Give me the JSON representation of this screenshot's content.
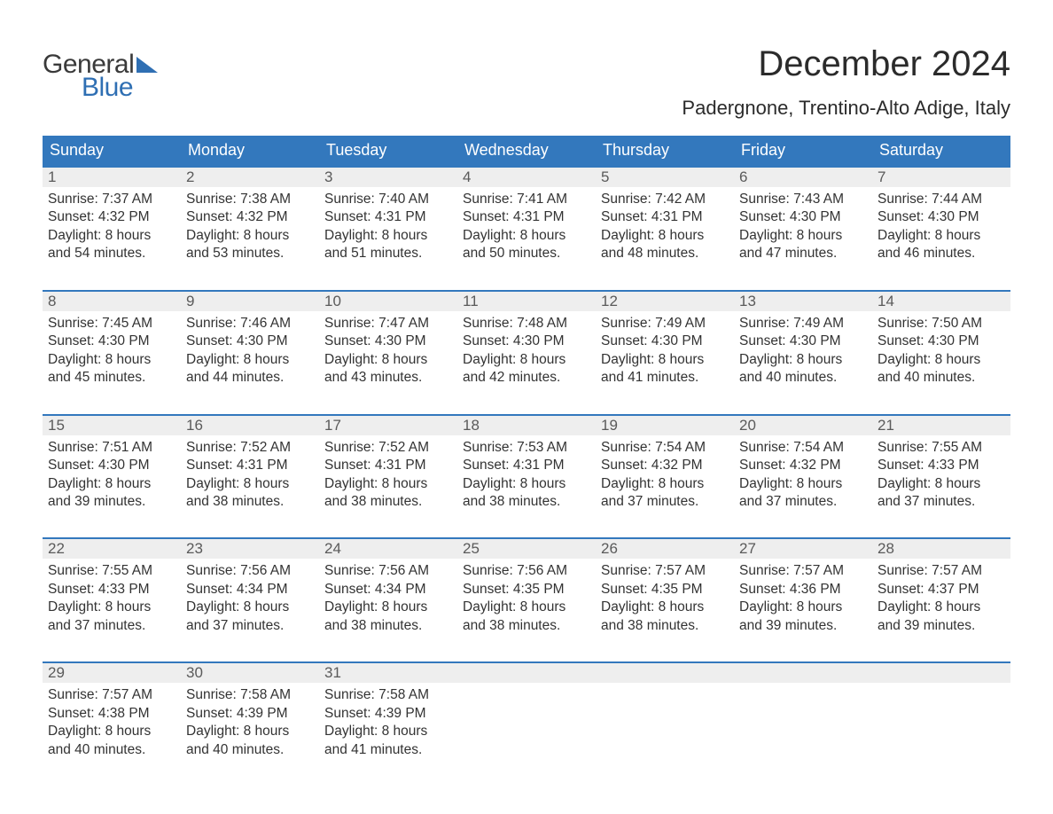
{
  "logo": {
    "word1": "General",
    "word2": "Blue"
  },
  "title": "December 2024",
  "subtitle": "Padergnone, Trentino-Alto Adige, Italy",
  "colors": {
    "header_bg": "#3378bd",
    "header_text": "#ffffff",
    "daynum_bg": "#eeeeee",
    "daynum_text": "#5a5a5a",
    "body_text": "#333333",
    "logo_gray": "#3a3a3a",
    "logo_blue": "#2f6fb3",
    "page_bg": "#ffffff",
    "week_border": "#3378bd"
  },
  "weekdays": [
    "Sunday",
    "Monday",
    "Tuesday",
    "Wednesday",
    "Thursday",
    "Friday",
    "Saturday"
  ],
  "weeks": [
    [
      {
        "n": "1",
        "l1": "Sunrise: 7:37 AM",
        "l2": "Sunset: 4:32 PM",
        "l3": "Daylight: 8 hours",
        "l4": "and 54 minutes."
      },
      {
        "n": "2",
        "l1": "Sunrise: 7:38 AM",
        "l2": "Sunset: 4:32 PM",
        "l3": "Daylight: 8 hours",
        "l4": "and 53 minutes."
      },
      {
        "n": "3",
        "l1": "Sunrise: 7:40 AM",
        "l2": "Sunset: 4:31 PM",
        "l3": "Daylight: 8 hours",
        "l4": "and 51 minutes."
      },
      {
        "n": "4",
        "l1": "Sunrise: 7:41 AM",
        "l2": "Sunset: 4:31 PM",
        "l3": "Daylight: 8 hours",
        "l4": "and 50 minutes."
      },
      {
        "n": "5",
        "l1": "Sunrise: 7:42 AM",
        "l2": "Sunset: 4:31 PM",
        "l3": "Daylight: 8 hours",
        "l4": "and 48 minutes."
      },
      {
        "n": "6",
        "l1": "Sunrise: 7:43 AM",
        "l2": "Sunset: 4:30 PM",
        "l3": "Daylight: 8 hours",
        "l4": "and 47 minutes."
      },
      {
        "n": "7",
        "l1": "Sunrise: 7:44 AM",
        "l2": "Sunset: 4:30 PM",
        "l3": "Daylight: 8 hours",
        "l4": "and 46 minutes."
      }
    ],
    [
      {
        "n": "8",
        "l1": "Sunrise: 7:45 AM",
        "l2": "Sunset: 4:30 PM",
        "l3": "Daylight: 8 hours",
        "l4": "and 45 minutes."
      },
      {
        "n": "9",
        "l1": "Sunrise: 7:46 AM",
        "l2": "Sunset: 4:30 PM",
        "l3": "Daylight: 8 hours",
        "l4": "and 44 minutes."
      },
      {
        "n": "10",
        "l1": "Sunrise: 7:47 AM",
        "l2": "Sunset: 4:30 PM",
        "l3": "Daylight: 8 hours",
        "l4": "and 43 minutes."
      },
      {
        "n": "11",
        "l1": "Sunrise: 7:48 AM",
        "l2": "Sunset: 4:30 PM",
        "l3": "Daylight: 8 hours",
        "l4": "and 42 minutes."
      },
      {
        "n": "12",
        "l1": "Sunrise: 7:49 AM",
        "l2": "Sunset: 4:30 PM",
        "l3": "Daylight: 8 hours",
        "l4": "and 41 minutes."
      },
      {
        "n": "13",
        "l1": "Sunrise: 7:49 AM",
        "l2": "Sunset: 4:30 PM",
        "l3": "Daylight: 8 hours",
        "l4": "and 40 minutes."
      },
      {
        "n": "14",
        "l1": "Sunrise: 7:50 AM",
        "l2": "Sunset: 4:30 PM",
        "l3": "Daylight: 8 hours",
        "l4": "and 40 minutes."
      }
    ],
    [
      {
        "n": "15",
        "l1": "Sunrise: 7:51 AM",
        "l2": "Sunset: 4:30 PM",
        "l3": "Daylight: 8 hours",
        "l4": "and 39 minutes."
      },
      {
        "n": "16",
        "l1": "Sunrise: 7:52 AM",
        "l2": "Sunset: 4:31 PM",
        "l3": "Daylight: 8 hours",
        "l4": "and 38 minutes."
      },
      {
        "n": "17",
        "l1": "Sunrise: 7:52 AM",
        "l2": "Sunset: 4:31 PM",
        "l3": "Daylight: 8 hours",
        "l4": "and 38 minutes."
      },
      {
        "n": "18",
        "l1": "Sunrise: 7:53 AM",
        "l2": "Sunset: 4:31 PM",
        "l3": "Daylight: 8 hours",
        "l4": "and 38 minutes."
      },
      {
        "n": "19",
        "l1": "Sunrise: 7:54 AM",
        "l2": "Sunset: 4:32 PM",
        "l3": "Daylight: 8 hours",
        "l4": "and 37 minutes."
      },
      {
        "n": "20",
        "l1": "Sunrise: 7:54 AM",
        "l2": "Sunset: 4:32 PM",
        "l3": "Daylight: 8 hours",
        "l4": "and 37 minutes."
      },
      {
        "n": "21",
        "l1": "Sunrise: 7:55 AM",
        "l2": "Sunset: 4:33 PM",
        "l3": "Daylight: 8 hours",
        "l4": "and 37 minutes."
      }
    ],
    [
      {
        "n": "22",
        "l1": "Sunrise: 7:55 AM",
        "l2": "Sunset: 4:33 PM",
        "l3": "Daylight: 8 hours",
        "l4": "and 37 minutes."
      },
      {
        "n": "23",
        "l1": "Sunrise: 7:56 AM",
        "l2": "Sunset: 4:34 PM",
        "l3": "Daylight: 8 hours",
        "l4": "and 37 minutes."
      },
      {
        "n": "24",
        "l1": "Sunrise: 7:56 AM",
        "l2": "Sunset: 4:34 PM",
        "l3": "Daylight: 8 hours",
        "l4": "and 38 minutes."
      },
      {
        "n": "25",
        "l1": "Sunrise: 7:56 AM",
        "l2": "Sunset: 4:35 PM",
        "l3": "Daylight: 8 hours",
        "l4": "and 38 minutes."
      },
      {
        "n": "26",
        "l1": "Sunrise: 7:57 AM",
        "l2": "Sunset: 4:35 PM",
        "l3": "Daylight: 8 hours",
        "l4": "and 38 minutes."
      },
      {
        "n": "27",
        "l1": "Sunrise: 7:57 AM",
        "l2": "Sunset: 4:36 PM",
        "l3": "Daylight: 8 hours",
        "l4": "and 39 minutes."
      },
      {
        "n": "28",
        "l1": "Sunrise: 7:57 AM",
        "l2": "Sunset: 4:37 PM",
        "l3": "Daylight: 8 hours",
        "l4": "and 39 minutes."
      }
    ],
    [
      {
        "n": "29",
        "l1": "Sunrise: 7:57 AM",
        "l2": "Sunset: 4:38 PM",
        "l3": "Daylight: 8 hours",
        "l4": "and 40 minutes."
      },
      {
        "n": "30",
        "l1": "Sunrise: 7:58 AM",
        "l2": "Sunset: 4:39 PM",
        "l3": "Daylight: 8 hours",
        "l4": "and 40 minutes."
      },
      {
        "n": "31",
        "l1": "Sunrise: 7:58 AM",
        "l2": "Sunset: 4:39 PM",
        "l3": "Daylight: 8 hours",
        "l4": "and 41 minutes."
      },
      {
        "n": "",
        "l1": "",
        "l2": "",
        "l3": "",
        "l4": ""
      },
      {
        "n": "",
        "l1": "",
        "l2": "",
        "l3": "",
        "l4": ""
      },
      {
        "n": "",
        "l1": "",
        "l2": "",
        "l3": "",
        "l4": ""
      },
      {
        "n": "",
        "l1": "",
        "l2": "",
        "l3": "",
        "l4": ""
      }
    ]
  ]
}
